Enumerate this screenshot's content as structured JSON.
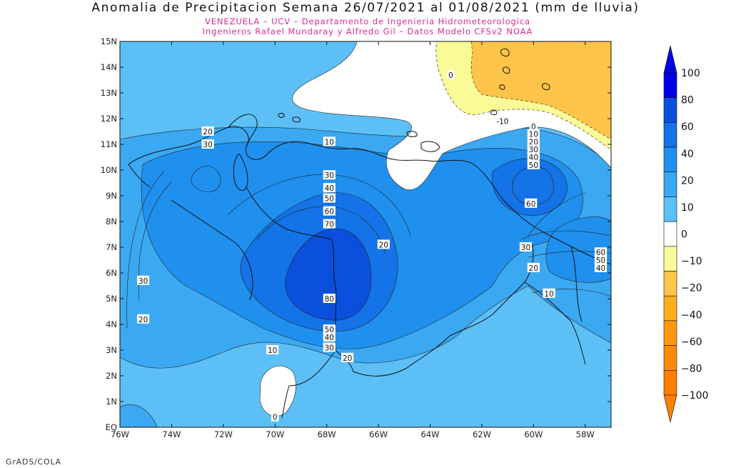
{
  "title": "Anomalia de Precipitacion Semana 26/07/2021 al 01/08/2021 (mm de lluvia)",
  "subtitle_1": "VENEZUELA – UCV – Departamento de Ingenieria Hidrometeorologica",
  "subtitle_2": "Ingenieros Rafael Mundaray y Alfredo Gil – Datos Modelo CFSv2 NOAA",
  "footer": "GrADS/COLA",
  "map": {
    "lon_range": [
      -76,
      -57
    ],
    "lat_range": [
      0,
      15
    ],
    "lon_ticks": [
      {
        "value": -76,
        "label": "76W"
      },
      {
        "value": -74,
        "label": "74W"
      },
      {
        "value": -72,
        "label": "72W"
      },
      {
        "value": -70,
        "label": "70W"
      },
      {
        "value": -68,
        "label": "68W"
      },
      {
        "value": -66,
        "label": "66W"
      },
      {
        "value": -64,
        "label": "64W"
      },
      {
        "value": -62,
        "label": "62W"
      },
      {
        "value": -60,
        "label": "60W"
      },
      {
        "value": -58,
        "label": "58W"
      }
    ],
    "lat_ticks": [
      {
        "value": 0,
        "label": "EQ"
      },
      {
        "value": 1,
        "label": "1N"
      },
      {
        "value": 2,
        "label": "2N"
      },
      {
        "value": 3,
        "label": "3N"
      },
      {
        "value": 4,
        "label": "4N"
      },
      {
        "value": 5,
        "label": "5N"
      },
      {
        "value": 6,
        "label": "6N"
      },
      {
        "value": 7,
        "label": "7N"
      },
      {
        "value": 8,
        "label": "8N"
      },
      {
        "value": 9,
        "label": "9N"
      },
      {
        "value": 10,
        "label": "10N"
      },
      {
        "value": 11,
        "label": "11N"
      },
      {
        "value": 12,
        "label": "12N"
      },
      {
        "value": 13,
        "label": "13N"
      },
      {
        "value": 14,
        "label": "14N"
      },
      {
        "value": 15,
        "label": "15N"
      }
    ],
    "contour_labels": [
      {
        "lon": -63.2,
        "lat": 13.7,
        "text": "0"
      },
      {
        "lon": -61.2,
        "lat": 11.9,
        "text": "-10"
      },
      {
        "lon": -60.0,
        "lat": 11.7,
        "text": "0"
      },
      {
        "lon": -60.0,
        "lat": 11.4,
        "text": "10"
      },
      {
        "lon": -60.0,
        "lat": 11.1,
        "text": "20"
      },
      {
        "lon": -60.0,
        "lat": 10.8,
        "text": "30"
      },
      {
        "lon": -60.0,
        "lat": 10.5,
        "text": "40"
      },
      {
        "lon": -60.0,
        "lat": 10.2,
        "text": "50"
      },
      {
        "lon": -72.6,
        "lat": 11.5,
        "text": "20"
      },
      {
        "lon": -72.6,
        "lat": 11.0,
        "text": "30"
      },
      {
        "lon": -67.9,
        "lat": 11.1,
        "text": "10"
      },
      {
        "lon": -67.9,
        "lat": 9.8,
        "text": "30"
      },
      {
        "lon": -67.9,
        "lat": 9.3,
        "text": "40"
      },
      {
        "lon": -67.9,
        "lat": 8.9,
        "text": "50"
      },
      {
        "lon": -67.9,
        "lat": 8.4,
        "text": "60"
      },
      {
        "lon": -67.9,
        "lat": 7.9,
        "text": "70"
      },
      {
        "lon": -67.9,
        "lat": 5.0,
        "text": "80"
      },
      {
        "lon": -65.8,
        "lat": 7.1,
        "text": "20"
      },
      {
        "lon": -60.3,
        "lat": 7.0,
        "text": "30"
      },
      {
        "lon": -60.1,
        "lat": 8.7,
        "text": "60"
      },
      {
        "lon": -57.4,
        "lat": 6.8,
        "text": "60"
      },
      {
        "lon": -57.4,
        "lat": 6.5,
        "text": "50"
      },
      {
        "lon": -57.4,
        "lat": 6.2,
        "text": "40"
      },
      {
        "lon": -60.0,
        "lat": 6.2,
        "text": "20"
      },
      {
        "lon": -59.4,
        "lat": 5.2,
        "text": "10"
      },
      {
        "lon": -75.1,
        "lat": 5.7,
        "text": "30"
      },
      {
        "lon": -75.1,
        "lat": 4.2,
        "text": "20"
      },
      {
        "lon": -67.9,
        "lat": 3.8,
        "text": "50"
      },
      {
        "lon": -67.9,
        "lat": 3.5,
        "text": "40"
      },
      {
        "lon": -67.9,
        "lat": 3.1,
        "text": "30"
      },
      {
        "lon": -67.2,
        "lat": 2.7,
        "text": "20"
      },
      {
        "lon": -70.1,
        "lat": 3.0,
        "text": "10"
      },
      {
        "lon": -70.0,
        "lat": 0.4,
        "text": "0"
      }
    ]
  },
  "colorbar": {
    "labels": [
      "100",
      "80",
      "60",
      "40",
      "20",
      "10",
      "0",
      "−10",
      "−20",
      "−40",
      "−60",
      "−80",
      "−100"
    ],
    "colors": [
      "#0000e6",
      "#0a50dc",
      "#1473e6",
      "#2090ee",
      "#3ba8f2",
      "#5cc0f7",
      "#ffffff",
      "#fafa96",
      "#ffc44a",
      "#ffad20",
      "#ff9810",
      "#ff8a0a",
      "#ff7d00"
    ]
  }
}
